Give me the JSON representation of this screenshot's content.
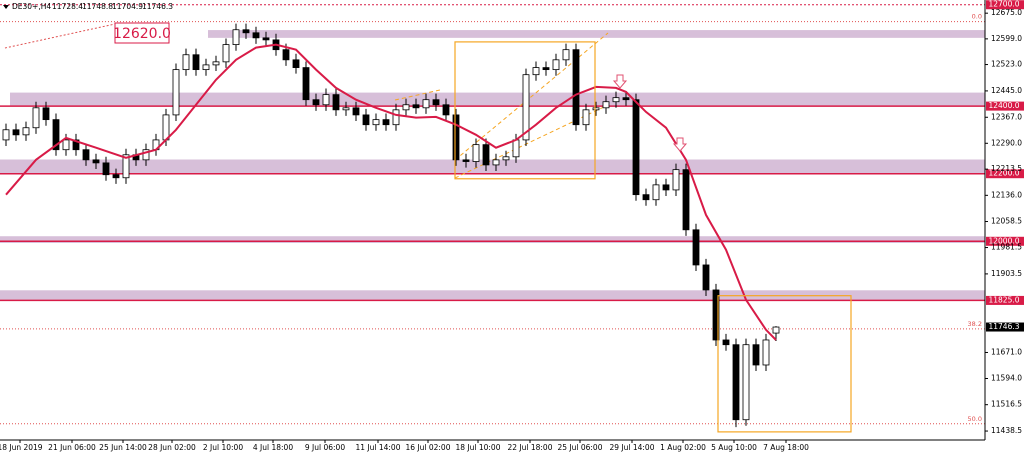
{
  "chart_data": {
    "type": "candlestick",
    "title": "DE30+,H4",
    "header_values": [
      11728.4,
      11748.8,
      11704.9,
      11746.3
    ],
    "annotation": "12620.0",
    "xlim": [
      -0.6,
      97.9
    ],
    "ylim": [
      11412,
      12714
    ],
    "xticks": [
      {
        "value": 1.4,
        "label": "18 Jun 2019"
      },
      {
        "value": 6.6,
        "label": "21 Jun 06:00"
      },
      {
        "value": 11.7,
        "label": "25 Jun 14:00"
      },
      {
        "value": 16.6,
        "label": "28 Jun 02:00"
      },
      {
        "value": 21.7,
        "label": "2 Jul 10:00"
      },
      {
        "value": 26.7,
        "label": "4 Jul 18:00"
      },
      {
        "value": 31.9,
        "label": "9 Jul 06:00"
      },
      {
        "value": 37.2,
        "label": "11 Jul 14:00"
      },
      {
        "value": 42.2,
        "label": "16 Jul 02:00"
      },
      {
        "value": 47.2,
        "label": "18 Jul 10:00"
      },
      {
        "value": 52.4,
        "label": "22 Jul 18:00"
      },
      {
        "value": 57.4,
        "label": "25 Jul 06:00"
      },
      {
        "value": 62.6,
        "label": "29 Jul 14:00"
      },
      {
        "value": 67.7,
        "label": "1 Aug 02:00"
      },
      {
        "value": 72.8,
        "label": "5 Aug 10:00"
      },
      {
        "value": 78,
        "label": "7 Aug 18:00"
      }
    ],
    "yticks": [
      {
        "value": 12675,
        "label": "12675.0"
      },
      {
        "value": 12599,
        "label": "12599.0"
      },
      {
        "value": 12523,
        "label": "12523.0"
      },
      {
        "value": 12445,
        "label": "12445.0"
      },
      {
        "value": 12367,
        "label": "12367.0"
      },
      {
        "value": 12290,
        "label": "12290.0"
      },
      {
        "value": 12213.5,
        "label": "12213.5"
      },
      {
        "value": 12136,
        "label": "12136.0"
      },
      {
        "value": 12058.5,
        "label": "12058.5"
      },
      {
        "value": 11981.5,
        "label": "11981.5"
      },
      {
        "value": 11903.5,
        "label": "11903.5"
      },
      {
        "value": 11671,
        "label": "11671.0"
      },
      {
        "value": 11594,
        "label": "11594.0"
      },
      {
        "value": 11516.5,
        "label": "11516.5"
      },
      {
        "value": 11438.5,
        "label": "11438.5"
      }
    ],
    "levels": [
      {
        "value": 12700,
        "label": "12700.0"
      },
      {
        "value": 12400,
        "label": "12400.0"
      },
      {
        "value": 12200,
        "label": "12200.0"
      },
      {
        "value": 12000,
        "label": "12000.0"
      },
      {
        "value": 11825,
        "label": "11825.0"
      }
    ],
    "last_price": 11746.3,
    "fib_levels": [
      {
        "value": 12650,
        "label": "0.0"
      },
      {
        "value": 11741,
        "label": "38.2"
      },
      {
        "value": 11460,
        "label": "50.0"
      }
    ],
    "zones": [
      {
        "low": 12602,
        "high": 12625
      },
      {
        "low": 12400,
        "high": 12440
      },
      {
        "low": 12200,
        "high": 12242
      },
      {
        "low": 11995,
        "high": 12015
      },
      {
        "low": 11825,
        "high": 11855
      }
    ],
    "boxes": [
      {
        "x": [
          44.9,
          58.9
        ],
        "y": [
          12185,
          12590
        ]
      },
      {
        "x": [
          71.2,
          84.5
        ],
        "y": [
          11436,
          11839
        ]
      }
    ],
    "open": [
      12300,
      12330,
      12315,
      12336,
      12395,
      12360,
      12271,
      12300,
      12271,
      12241,
      12232,
      12197,
      12188,
      12256,
      12241,
      12271,
      12300,
      12374,
      12508,
      12552,
      12508,
      12522,
      12531,
      12582,
      12626,
      12617,
      12602,
      12596,
      12567,
      12537,
      12514,
      12419,
      12404,
      12434,
      12389,
      12395,
      12374,
      12345,
      12360,
      12345,
      12389,
      12404,
      12395,
      12419,
      12404,
      12374,
      12241,
      12236,
      12286,
      12226,
      12241,
      12250,
      12300,
      12493,
      12514,
      12508,
      12537,
      12567,
      12345,
      12389,
      12395,
      12413,
      12425,
      12419,
      12138,
      12123,
      12167,
      12152,
      12212,
      12034,
      11930,
      11856,
      11708,
      11694,
      11472,
      11694,
      11634,
      11728.4
    ],
    "high": [
      12348,
      12348,
      12354,
      12413,
      12413,
      12378,
      12318,
      12318,
      12289,
      12259,
      12250,
      12215,
      12274,
      12274,
      12289,
      12318,
      12392,
      12526,
      12570,
      12570,
      12540,
      12549,
      12600,
      12644,
      12644,
      12635,
      12620,
      12614,
      12585,
      12555,
      12532,
      12437,
      12452,
      12452,
      12413,
      12413,
      12392,
      12378,
      12378,
      12407,
      12422,
      12422,
      12437,
      12437,
      12422,
      12392,
      12259,
      12304,
      12304,
      12259,
      12268,
      12318,
      12511,
      12532,
      12532,
      12555,
      12585,
      12585,
      12407,
      12413,
      12431,
      12443,
      12443,
      12437,
      12156,
      12185,
      12185,
      12230,
      12230,
      12052,
      11948,
      11874,
      11726,
      11712,
      11712,
      11712,
      11726,
      11748.8
    ],
    "low": [
      12282,
      12297,
      12297,
      12318,
      12342,
      12253,
      12253,
      12253,
      12223,
      12214,
      12179,
      12170,
      12170,
      12223,
      12223,
      12253,
      12282,
      12356,
      12490,
      12490,
      12490,
      12504,
      12513,
      12564,
      12599,
      12584,
      12578,
      12549,
      12519,
      12496,
      12401,
      12386,
      12386,
      12371,
      12371,
      12356,
      12327,
      12327,
      12327,
      12327,
      12371,
      12377,
      12377,
      12386,
      12356,
      12223,
      12218,
      12218,
      12208,
      12208,
      12223,
      12232,
      12282,
      12475,
      12490,
      12490,
      12519,
      12327,
      12327,
      12371,
      12377,
      12395,
      12401,
      12120,
      12105,
      12105,
      12134,
      12134,
      12016,
      11912,
      11838,
      11690,
      11676,
      11450,
      11454,
      11616,
      11616,
      11704.9
    ],
    "close": [
      12330,
      12315,
      12336,
      12395,
      12360,
      12271,
      12300,
      12271,
      12241,
      12232,
      12197,
      12188,
      12256,
      12241,
      12271,
      12300,
      12374,
      12508,
      12552,
      12508,
      12522,
      12531,
      12582,
      12626,
      12617,
      12602,
      12596,
      12567,
      12537,
      12514,
      12419,
      12404,
      12434,
      12389,
      12395,
      12374,
      12345,
      12360,
      12345,
      12389,
      12404,
      12395,
      12419,
      12404,
      12374,
      12241,
      12236,
      12286,
      12226,
      12241,
      12250,
      12300,
      12493,
      12514,
      12508,
      12537,
      12567,
      12345,
      12389,
      12395,
      12413,
      12425,
      12419,
      12138,
      12123,
      12167,
      12152,
      12212,
      12034,
      11930,
      11856,
      11708,
      11694,
      11472,
      11694,
      11634,
      11708,
      11746.3
    ],
    "moving_average": {
      "color": "#d81b47",
      "x": [
        0,
        3,
        6,
        9,
        12,
        15,
        17,
        19,
        21,
        23,
        25,
        27,
        29,
        31,
        33,
        35,
        37,
        39,
        41,
        43,
        45,
        47,
        49,
        51,
        53,
        55,
        57,
        59,
        61,
        62,
        64,
        66,
        68,
        70,
        72,
        74,
        76,
        77
      ],
      "values": [
        12138,
        12241,
        12306,
        12277,
        12247,
        12271,
        12330,
        12404,
        12478,
        12537,
        12573,
        12582,
        12567,
        12508,
        12454,
        12419,
        12395,
        12374,
        12366,
        12368,
        12345,
        12315,
        12277,
        12300,
        12345,
        12395,
        12434,
        12457,
        12454,
        12442,
        12383,
        12336,
        12241,
        12078,
        11975,
        11827,
        11738,
        11708
      ]
    },
    "bull_color": "#ffffff",
    "bear_color": "#000000",
    "level_color": "#d81b47",
    "zone_color": "#d7bfd9",
    "box_color": "#f5a623"
  }
}
